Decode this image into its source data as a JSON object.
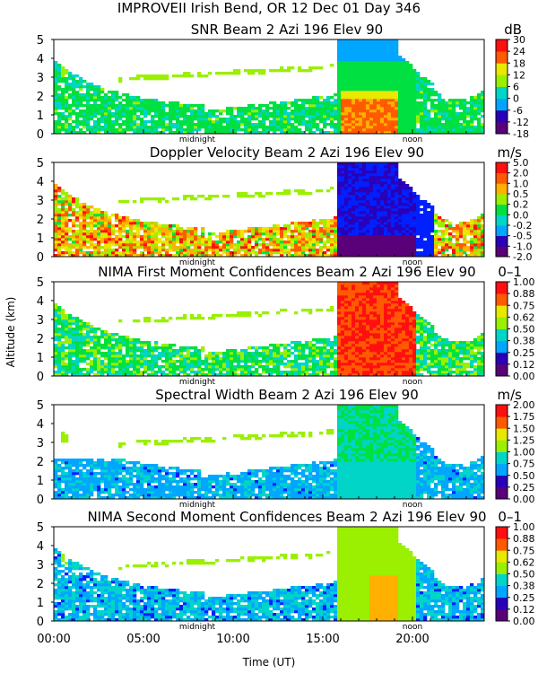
{
  "title": "IMPROVEII  Irish Bend, OR  12 Dec 01 Day 346",
  "y_axis_label": "Altitude (km)",
  "x_axis_label": "Time (UT)",
  "x_ticks": [
    "00:00",
    "05:00",
    "10:00",
    "15:00",
    "20:00"
  ],
  "time_markers": {
    "midnight": "midnight",
    "noon": "noon"
  },
  "palette": [
    "#5a0078",
    "#2a00b8",
    "#0020ff",
    "#00a6ff",
    "#00d5c8",
    "#00e040",
    "#9af000",
    "#e8e800",
    "#ffb000",
    "#ff5a00",
    "#ff1010"
  ],
  "chart_data": [
    {
      "type": "heatmap",
      "title": "SNR Beam 2 Azi 196 Elev 90",
      "unit": "dB",
      "ylabel": "Altitude (km)",
      "ylim": [
        0,
        5
      ],
      "y_ticks": [
        "0",
        "1",
        "2",
        "3",
        "4",
        "5"
      ],
      "xlim_hours": [
        0,
        24
      ],
      "colorbar": [
        "-18",
        "-12",
        "-6",
        "0",
        "6",
        "12",
        "18",
        "24",
        "30"
      ]
    },
    {
      "type": "heatmap",
      "title": "Doppler Velocity Beam 2 Azi 196 Elev 90",
      "unit": "m/s",
      "ylabel": "Altitude (km)",
      "ylim": [
        0,
        5
      ],
      "y_ticks": [
        "0",
        "1",
        "2",
        "3",
        "4",
        "5"
      ],
      "xlim_hours": [
        0,
        24
      ],
      "colorbar": [
        "-2.0",
        "-1.0",
        "-0.5",
        "-0.2",
        "0.0",
        "0.2",
        "0.5",
        "1.0",
        "2.0",
        "5.0"
      ]
    },
    {
      "type": "heatmap",
      "title": "NIMA First Moment Confidences Beam 2 Azi 196 Elev 90",
      "unit": "0–1",
      "ylabel": "Altitude (km)",
      "ylim": [
        0,
        5
      ],
      "y_ticks": [
        "0",
        "1",
        "2",
        "3",
        "4",
        "5"
      ],
      "xlim_hours": [
        0,
        24
      ],
      "colorbar": [
        "0.00",
        "0.12",
        "0.25",
        "0.38",
        "0.50",
        "0.62",
        "0.75",
        "0.88",
        "1.00"
      ]
    },
    {
      "type": "heatmap",
      "title": "Spectral Width Beam 2 Azi 196 Elev 90",
      "unit": "m/s",
      "ylabel": "Altitude (km)",
      "ylim": [
        0,
        5
      ],
      "y_ticks": [
        "0",
        "1",
        "2",
        "3",
        "4",
        "5"
      ],
      "xlim_hours": [
        0,
        24
      ],
      "colorbar": [
        "0.00",
        "0.25",
        "0.50",
        "0.75",
        "1.00",
        "1.25",
        "1.50",
        "1.75",
        "2.00"
      ]
    },
    {
      "type": "heatmap",
      "title": "NIMA Second Moment Confidences Beam 2 Azi 196 Elev 90",
      "unit": "0–1",
      "ylabel": "Altitude (km)",
      "ylim": [
        0,
        5
      ],
      "y_ticks": [
        "0",
        "1",
        "2",
        "3",
        "4",
        "5"
      ],
      "xlim_hours": [
        0,
        24
      ],
      "colorbar": [
        "0.00",
        "0.12",
        "0.25",
        "0.38",
        "0.50",
        "0.62",
        "0.75",
        "0.88",
        "1.00"
      ]
    }
  ]
}
